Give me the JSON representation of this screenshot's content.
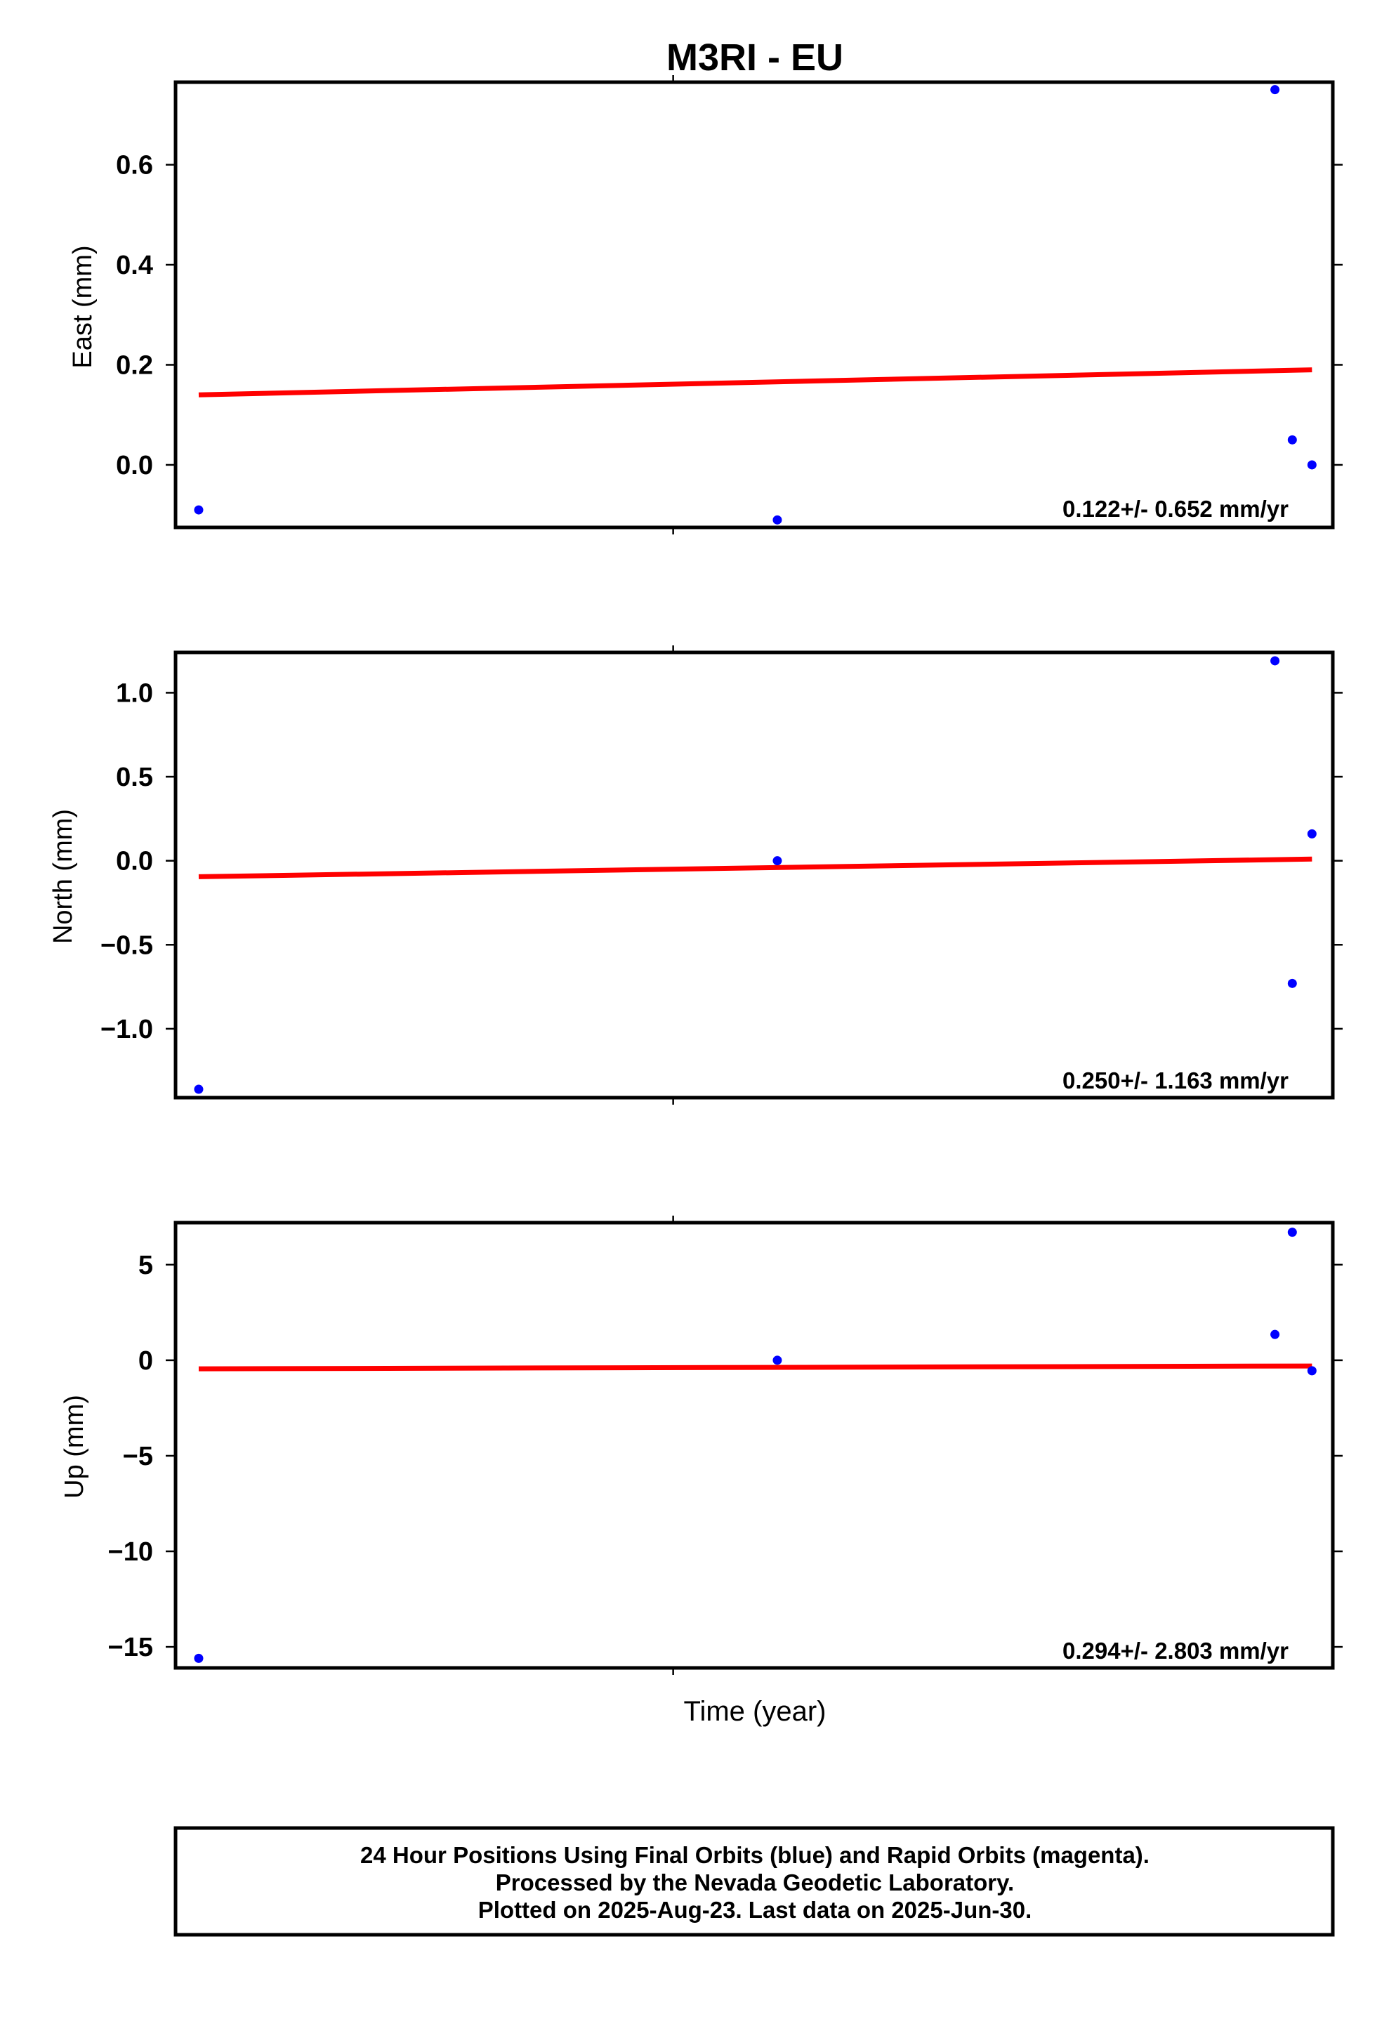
{
  "chart_data": {
    "title": "M3RI - EU",
    "type": "scatter",
    "xlabel": "Time (year)",
    "colors": {
      "data": "#0000ff",
      "fit": "#ff0000"
    },
    "x_domain": [
      0,
      1
    ],
    "x_center_tick": 0.43,
    "panels": [
      {
        "ylabel": "East (mm)",
        "ylim": [
          -0.125,
          0.765
        ],
        "yticks": [
          0.0,
          0.2,
          0.4,
          0.6
        ],
        "ytick_labels": [
          "0.0",
          "0.2",
          "0.4",
          "0.6"
        ],
        "points": [
          [
            0.02,
            -0.09
          ],
          [
            0.52,
            -0.11
          ],
          [
            0.95,
            0.75
          ],
          [
            0.965,
            0.05
          ],
          [
            0.982,
            0.0
          ]
        ],
        "fit": [
          [
            0.02,
            0.14
          ],
          [
            0.982,
            0.19
          ]
        ],
        "rate": "0.122+/- 0.652 mm/yr"
      },
      {
        "ylabel": "North (mm)",
        "ylim": [
          -1.41,
          1.24
        ],
        "yticks": [
          -1.0,
          -0.5,
          0.0,
          0.5,
          1.0
        ],
        "ytick_labels": [
          "−1.0",
          "−0.5",
          "0.0",
          "0.5",
          "1.0"
        ],
        "points": [
          [
            0.02,
            -1.36
          ],
          [
            0.52,
            0.0
          ],
          [
            0.95,
            1.19
          ],
          [
            0.965,
            -0.73
          ],
          [
            0.982,
            0.16
          ]
        ],
        "fit": [
          [
            0.02,
            -0.095
          ],
          [
            0.982,
            0.01
          ]
        ],
        "rate": "0.250+/- 1.163 mm/yr"
      },
      {
        "ylabel": "Up (mm)",
        "ylim": [
          -16.1,
          7.2
        ],
        "yticks": [
          -15,
          -10,
          -5,
          0,
          5
        ],
        "ytick_labels": [
          "−15",
          "−10",
          "−5",
          "0",
          "5"
        ],
        "points": [
          [
            0.02,
            -15.6
          ],
          [
            0.52,
            0.0
          ],
          [
            0.95,
            1.35
          ],
          [
            0.965,
            6.7
          ],
          [
            0.982,
            -0.55
          ]
        ],
        "fit": [
          [
            0.02,
            -0.45
          ],
          [
            0.982,
            -0.3
          ]
        ],
        "rate": "0.294+/- 2.803 mm/yr"
      }
    ]
  },
  "footer": {
    "line1": "24 Hour Positions Using Final Orbits (blue) and Rapid Orbits (magenta).",
    "line2": "Processed by the Nevada Geodetic Laboratory.",
    "line3": "Plotted on 2025-Aug-23. Last data on 2025-Jun-30."
  }
}
